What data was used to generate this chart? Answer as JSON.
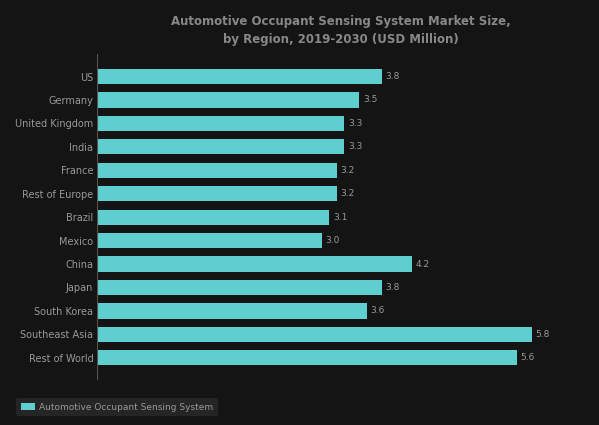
{
  "title_line1": "Automotive Occupant Sensing System Market Size,",
  "title_line2": "by Region, 2019-2030 (USD Million)",
  "categories": [
    "US",
    "Germany",
    "United Kingdom",
    "India",
    "France",
    "Rest of Europe",
    "Brazil",
    "Mexico",
    "China",
    "Japan",
    "South Korea",
    "Southeast Asia",
    "Rest of World"
  ],
  "values": [
    3.8,
    3.5,
    3.3,
    3.3,
    3.2,
    3.2,
    3.1,
    3.0,
    4.2,
    3.8,
    3.6,
    5.8,
    5.6
  ],
  "bar_color": "#5ecece",
  "background_color": "#141414",
  "text_color": "#999999",
  "title_color": "#888888",
  "legend_label": "Automotive Occupant Sensing System",
  "xlim_max": 6.5
}
